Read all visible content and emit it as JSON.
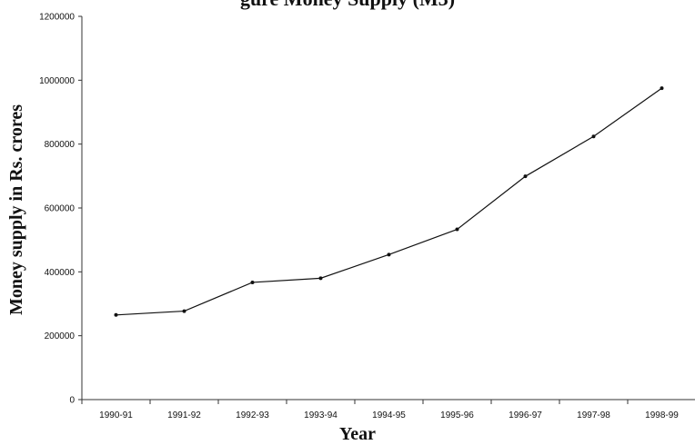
{
  "chart_data": {
    "type": "line",
    "title": "gure   Money Supply (M3)",
    "xlabel": "Year",
    "ylabel": "Money supply in Rs. crores",
    "categories": [
      "1990-91",
      "1991-92",
      "1992-93",
      "1993-94",
      "1994-95",
      "1995-96",
      "1996-97",
      "1997-98",
      "1998-99"
    ],
    "series": [
      {
        "values": [
          265000,
          277000,
          367000,
          380000,
          454000,
          533000,
          699000,
          824000,
          975000
        ]
      }
    ],
    "ylim": [
      0,
      1200000
    ],
    "yticks": [
      "0",
      "200000",
      "400000",
      "600000",
      "800000",
      "1000000",
      "1200000"
    ],
    "grid": false,
    "legend": "none",
    "colors": {
      "line": "#111111",
      "axis": "#333333",
      "text": "#111111"
    }
  }
}
